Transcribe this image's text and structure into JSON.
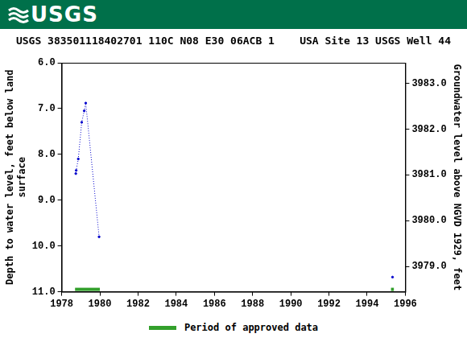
{
  "chart_data": {
    "type": "line",
    "header": "USGS",
    "title": "USGS 383501118402701 110C N08 E30 06ACB 1    USA Site 13 USGS Well 44",
    "y_label": [
      "Depth to water level, feet below land",
      "surface"
    ],
    "y2_label": "Groundwater level above NGVD 1929, feet",
    "x": [
      1978.74,
      1978.76,
      1978.87,
      1979.05,
      1979.18,
      1979.26,
      1979.96,
      null,
      1995.33
    ],
    "series": [
      {
        "color": "#0000cc",
        "line_style": "dotted",
        "marker": "point",
        "values": [
          8.42,
          8.35,
          8.1,
          7.3,
          7.05,
          6.88,
          9.8,
          null,
          10.68
        ]
      }
    ],
    "xlim": [
      1978,
      1996
    ],
    "xticks": [
      1978,
      1980,
      1982,
      1984,
      1986,
      1988,
      1990,
      1992,
      1994,
      1996
    ],
    "ylim": [
      11,
      6
    ],
    "yticks": [
      {
        "value": 6,
        "label": "6.0"
      },
      {
        "value": 7,
        "label": "7.0"
      },
      {
        "value": 8,
        "label": "8.0"
      },
      {
        "value": 9,
        "label": "9.0"
      },
      {
        "value": 10,
        "label": "10.0"
      },
      {
        "value": 11,
        "label": "11.0"
      }
    ],
    "y2lim": [
      3978.45,
      3983.45
    ],
    "y2ticks": [
      {
        "value": 3979,
        "label": "3979.0"
      },
      {
        "value": 3980,
        "label": "3980.0"
      },
      {
        "value": 3981,
        "label": "3981.0"
      },
      {
        "value": 3982,
        "label": "3982.0"
      },
      {
        "value": 3983,
        "label": "3983.0"
      }
    ],
    "grid": false,
    "approved_periods": {
      "label": "Period of approved data",
      "color": "#33a02c",
      "ranges": [
        [
          1978.7,
          1980.0
        ],
        [
          1995.25,
          1995.4
        ]
      ]
    }
  }
}
